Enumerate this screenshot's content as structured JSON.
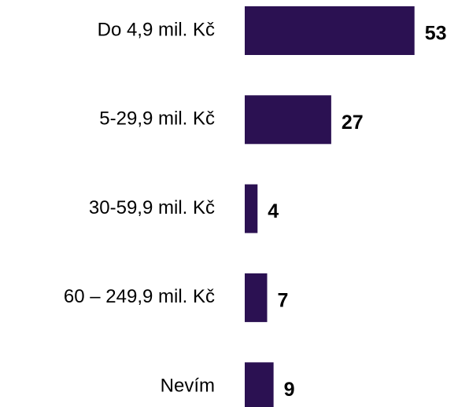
{
  "chart_data": {
    "type": "bar",
    "orientation": "horizontal",
    "categories": [
      "Do 4,9 mil. Kč",
      "5-29,9 mil. Kč",
      "30-59,9 mil. Kč",
      "60 – 249,9 mil. Kč",
      "Nevím"
    ],
    "values": [
      53,
      27,
      4,
      7,
      9
    ],
    "color": "#2b1152"
  }
}
